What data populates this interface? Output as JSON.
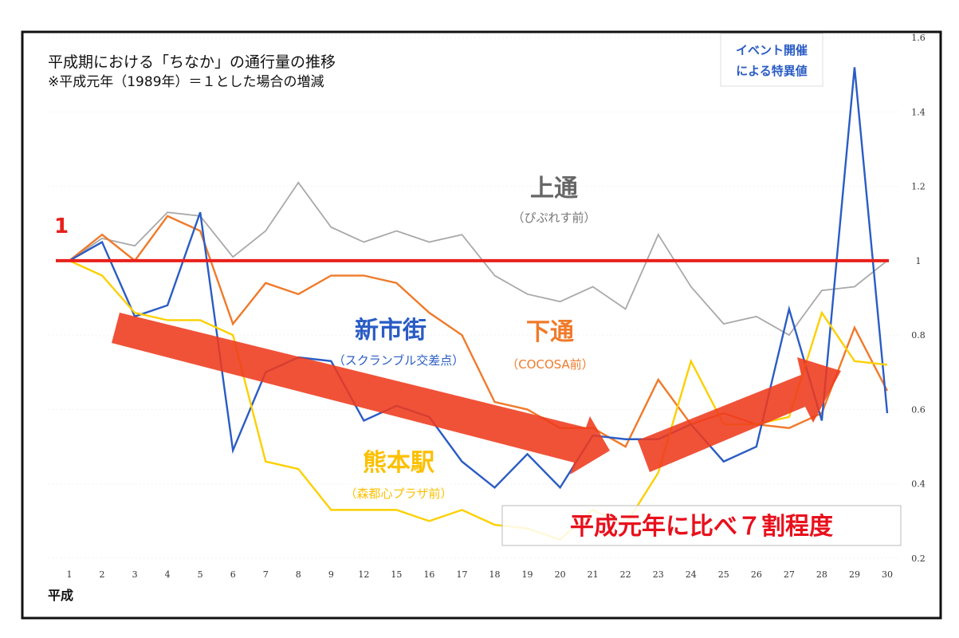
{
  "chart_data": {
    "type": "line",
    "title": "平成期における「ちなか」の通行量の推移",
    "subtitle": "※平成元年（1989年）＝１とした場合の増減",
    "xlabel": "平成",
    "ylabel": "",
    "ylim": [
      0.2,
      1.6
    ],
    "yticks": [
      "0.2",
      "0.4",
      "0.6",
      "0.8",
      "1",
      "1.2",
      "1.4",
      "1.6"
    ],
    "categories": [
      "1",
      "2",
      "3",
      "4",
      "5",
      "6",
      "7",
      "8",
      "9",
      "12",
      "15",
      "16",
      "17",
      "18",
      "19",
      "20",
      "21",
      "22",
      "23",
      "24",
      "25",
      "26",
      "27",
      "28",
      "29",
      "30"
    ],
    "baseline": {
      "value": 1,
      "label": "1",
      "color": "#e8201c"
    },
    "series": [
      {
        "name": "上通",
        "sub": "（ぴぷれす前）",
        "color": "#a9a9a9",
        "values": [
          1.0,
          1.06,
          1.04,
          1.13,
          1.12,
          1.01,
          1.08,
          1.21,
          1.09,
          1.05,
          1.08,
          1.05,
          1.07,
          0.96,
          0.91,
          0.89,
          0.93,
          0.87,
          1.07,
          0.93,
          0.83,
          0.85,
          0.8,
          0.92,
          0.93,
          1.0
        ]
      },
      {
        "name": "下通",
        "sub": "（COCOSA前）",
        "color": "#f07a2a",
        "values": [
          1.0,
          1.07,
          1.0,
          1.12,
          1.08,
          0.83,
          0.94,
          0.91,
          0.96,
          0.96,
          0.94,
          0.86,
          0.8,
          0.62,
          0.6,
          0.55,
          0.55,
          0.5,
          0.68,
          0.56,
          0.59,
          0.56,
          0.55,
          0.59,
          0.82,
          0.65
        ]
      },
      {
        "name": "新市街",
        "sub": "（スクランブル交差点）",
        "color": "#2a5cc4",
        "values": [
          1.0,
          1.05,
          0.85,
          0.88,
          1.13,
          0.49,
          0.7,
          0.74,
          0.73,
          0.57,
          0.61,
          0.58,
          0.46,
          0.39,
          0.48,
          0.39,
          0.53,
          0.52,
          0.52,
          0.56,
          0.46,
          0.5,
          0.87,
          0.57,
          1.52,
          0.59
        ]
      },
      {
        "name": "熊本駅",
        "sub": "（森都心プラザ前）",
        "color": "#fcd000",
        "values": [
          1.0,
          0.96,
          0.86,
          0.84,
          0.84,
          0.8,
          0.46,
          0.44,
          0.33,
          0.33,
          0.33,
          0.3,
          0.33,
          0.29,
          0.28,
          0.25,
          0.33,
          0.29,
          0.43,
          0.73,
          0.56,
          0.56,
          0.58,
          0.86,
          0.73,
          0.72
        ]
      }
    ],
    "annotations": {
      "event": [
        "イベント開催",
        "による特異値"
      ],
      "summary": "平成元年に比べ７割程度"
    },
    "grid": false,
    "legend": "inline-labels"
  }
}
